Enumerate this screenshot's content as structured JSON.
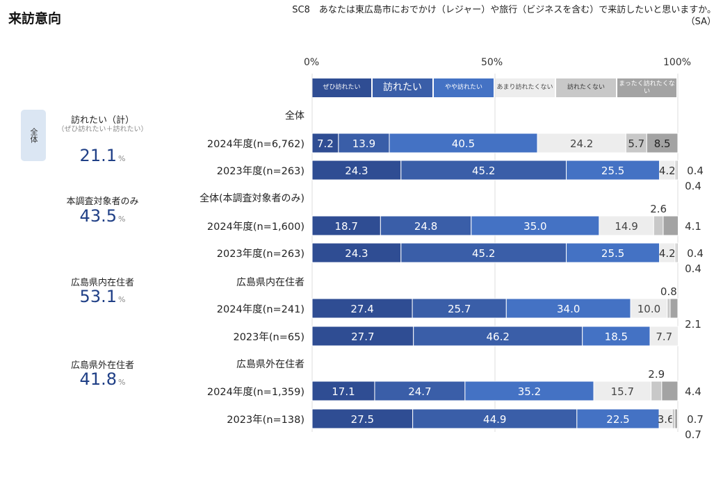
{
  "title": "来訪意向",
  "question_line1": "SC8　あなたは東広島市におでかけ（レジャー）や旅行（ビジネスを含む）で来訪したいと思いますか。",
  "question_line2": "（SA）",
  "axis_ticks": [
    "0%",
    "50%",
    "100%"
  ],
  "legend": [
    {
      "label": "ぜひ訪れたい",
      "color": "#2f4d93",
      "text_color": "#ffffff"
    },
    {
      "label": "訪れたい",
      "color": "#3a5ea8",
      "text_color": "#ffffff"
    },
    {
      "label": "やや訪れたい",
      "color": "#4472c4",
      "text_color": "#ffffff"
    },
    {
      "label": "あまり訪れたくない",
      "color": "#ededed",
      "text_color": "#444444"
    },
    {
      "label": "訪れたくない",
      "color": "#c8c8c8",
      "text_color": "#333333"
    },
    {
      "label": "まったく訪れたくない",
      "color": "#a3a3a3",
      "text_color": "#ffffff"
    }
  ],
  "side_tab": "全体",
  "summary": [
    {
      "label": "訪れたい（計）",
      "sub": "（ぜひ訪れたい＋訪れたい）",
      "value": "21.1",
      "unit": "%"
    },
    {
      "label": "本調査対象者のみ",
      "value": "43.5",
      "unit": "%"
    },
    {
      "label": "広島県内在住者",
      "value": "53.1",
      "unit": "%"
    },
    {
      "label": "広島県外在住者",
      "value": "41.8",
      "unit": "%"
    }
  ],
  "chart_data": {
    "type": "bar",
    "orientation": "horizontal",
    "stacked": true,
    "xlim": [
      0,
      100
    ],
    "x_ticks": [
      "0%",
      "50%",
      "100%"
    ],
    "series": [
      {
        "name": "ぜひ訪れたい"
      },
      {
        "name": "訪れたい"
      },
      {
        "name": "やや訪れたい"
      },
      {
        "name": "あまり訪れたくない"
      },
      {
        "name": "訪れたくない"
      },
      {
        "name": "まったく訪れたくない"
      }
    ],
    "groups": [
      {
        "name": "全体",
        "rows": [
          {
            "label": "2024年度(n=6,762)",
            "values": [
              7.2,
              13.9,
              40.5,
              24.2,
              5.7,
              8.5
            ]
          },
          {
            "label": "2023年度(n=263)",
            "values": [
              24.3,
              45.2,
              25.5,
              4.2,
              0.4,
              0.4
            ]
          }
        ]
      },
      {
        "name": "全体(本調査対象者のみ)",
        "rows": [
          {
            "label": "2024年度(n=1,600)",
            "values": [
              18.7,
              24.8,
              35.0,
              14.9,
              2.6,
              4.1
            ]
          },
          {
            "label": "2023年度(n=263)",
            "values": [
              24.3,
              45.2,
              25.5,
              4.2,
              0.4,
              0.4
            ]
          }
        ]
      },
      {
        "name": "広島県内在住者",
        "rows": [
          {
            "label": "2024年度(n=241)",
            "values": [
              27.4,
              25.7,
              34.0,
              10.0,
              0.8,
              2.1
            ]
          },
          {
            "label": "2023年(n=65)",
            "values": [
              27.7,
              46.2,
              18.5,
              7.7,
              0,
              0
            ]
          }
        ]
      },
      {
        "name": "広島県外在住者",
        "rows": [
          {
            "label": "2024年度(n=1,359)",
            "values": [
              17.1,
              24.7,
              35.2,
              15.7,
              2.9,
              4.4
            ]
          },
          {
            "label": "2023年(n=138)",
            "values": [
              27.5,
              44.9,
              22.5,
              3.6,
              0.7,
              0.7
            ]
          }
        ]
      }
    ]
  }
}
